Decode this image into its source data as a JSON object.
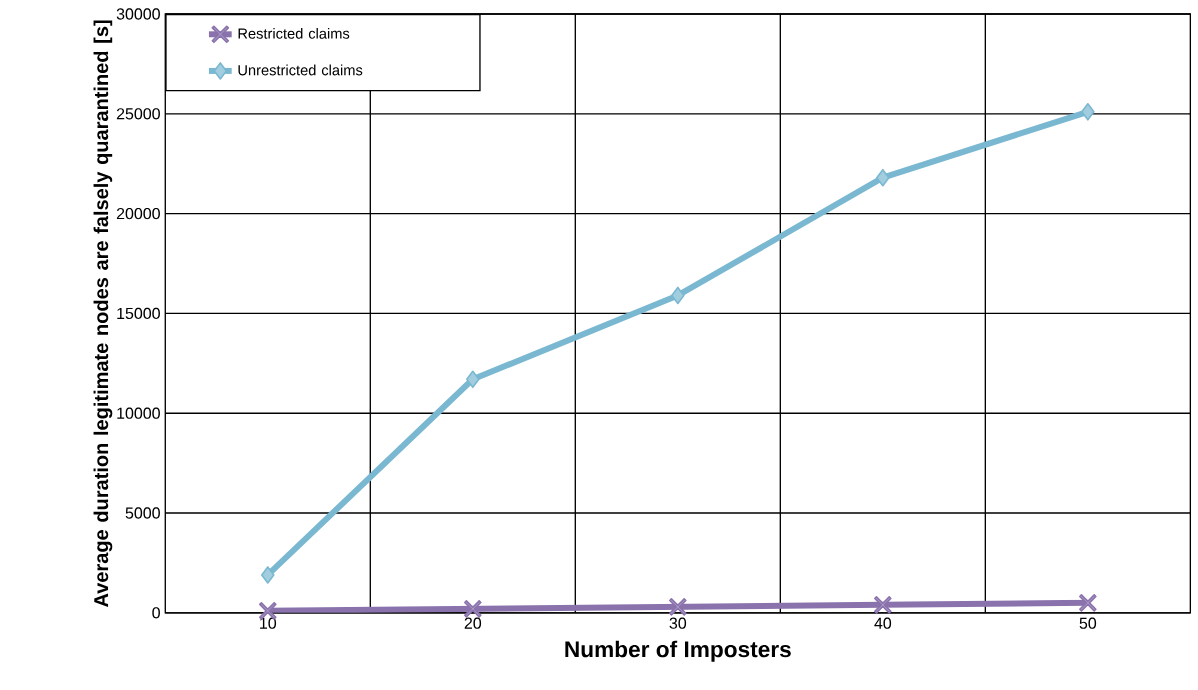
{
  "chart_data": {
    "type": "line",
    "xlabel": "Number of Imposters",
    "ylabel": "Average duration legitimate nodes are falsely quarantined [s]",
    "categories": [
      "10",
      "20",
      "30",
      "40",
      "50"
    ],
    "series": [
      {
        "name": "Restricted claims",
        "color": "#8a72ac",
        "marker": "cross",
        "values": [
          100,
          200,
          300,
          400,
          500
        ]
      },
      {
        "name": "Unrestricted claims",
        "color": "#7ab8d1",
        "marker": "diamond",
        "values": [
          1900,
          11700,
          15900,
          21800,
          25100
        ]
      }
    ],
    "ylim": [
      0,
      30000
    ],
    "yticks": [
      0,
      5000,
      10000,
      15000,
      20000,
      25000,
      30000
    ],
    "grid": true,
    "legend": "top left",
    "line_style": "solid"
  }
}
